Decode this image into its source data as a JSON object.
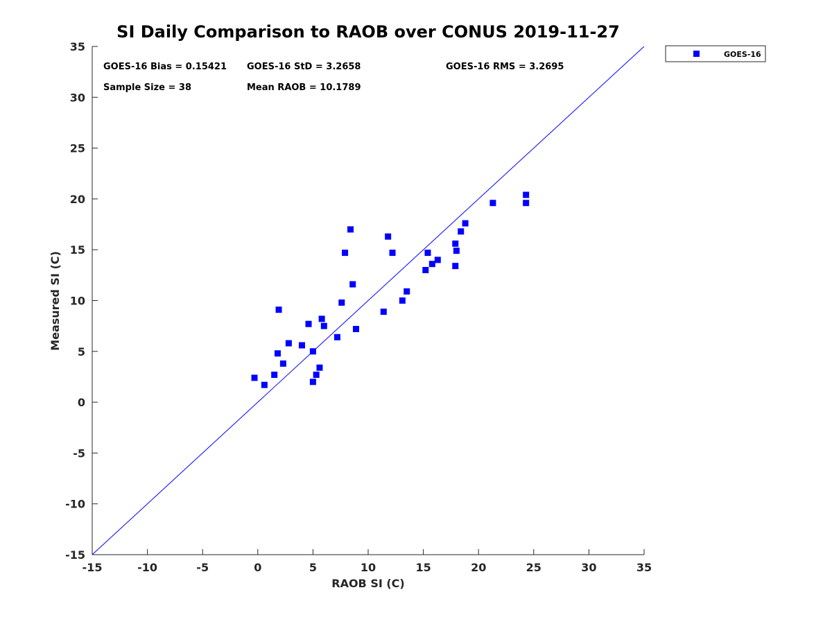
{
  "chart_data": {
    "type": "scatter",
    "title": "SI Daily Comparison to RAOB over CONUS 2019-11-27",
    "xlabel": "RAOB SI (C)",
    "ylabel": "Measured SI (C)",
    "xlim": [
      -15,
      35
    ],
    "ylim": [
      -15,
      35
    ],
    "xticks": [
      -15,
      -10,
      -5,
      0,
      5,
      10,
      15,
      20,
      25,
      30,
      35
    ],
    "yticks": [
      -15,
      -10,
      -5,
      0,
      5,
      10,
      15,
      20,
      25,
      30,
      35
    ],
    "grid": false,
    "legend_position": "outside top-right",
    "stats": [
      "GOES-16 Bias = 0.15421",
      "GOES-16 StD = 3.2658",
      "GOES-16 RMS = 3.2695",
      "Sample Size = 38",
      "Mean RAOB = 10.1789"
    ],
    "reference_line": {
      "name": "1:1 line",
      "color": "#0000ff",
      "from": [
        -15,
        -15
      ],
      "to": [
        35,
        35
      ]
    },
    "series": [
      {
        "name": "GOES-16",
        "color": "#0000ff",
        "marker": "square",
        "points": [
          [
            -0.3,
            2.4
          ],
          [
            0.6,
            1.7
          ],
          [
            1.5,
            2.7
          ],
          [
            1.8,
            4.8
          ],
          [
            1.9,
            9.1
          ],
          [
            2.3,
            3.8
          ],
          [
            2.8,
            5.8
          ],
          [
            4.0,
            5.6
          ],
          [
            4.6,
            7.7
          ],
          [
            5.0,
            5.0
          ],
          [
            5.0,
            2.0
          ],
          [
            5.3,
            2.7
          ],
          [
            5.6,
            3.4
          ],
          [
            5.8,
            8.2
          ],
          [
            6.0,
            7.5
          ],
          [
            7.2,
            6.4
          ],
          [
            7.6,
            9.8
          ],
          [
            7.9,
            14.7
          ],
          [
            8.4,
            17.0
          ],
          [
            8.6,
            11.6
          ],
          [
            8.9,
            7.2
          ],
          [
            11.4,
            8.9
          ],
          [
            11.8,
            16.3
          ],
          [
            12.2,
            14.7
          ],
          [
            13.1,
            10.0
          ],
          [
            13.5,
            10.9
          ],
          [
            15.2,
            13.0
          ],
          [
            15.4,
            14.7
          ],
          [
            15.8,
            13.6
          ],
          [
            16.3,
            14.0
          ],
          [
            17.9,
            15.6
          ],
          [
            18.0,
            14.9
          ],
          [
            17.9,
            13.4
          ],
          [
            18.4,
            16.8
          ],
          [
            18.8,
            17.6
          ],
          [
            21.3,
            19.6
          ],
          [
            24.3,
            20.4
          ],
          [
            24.3,
            19.6
          ]
        ]
      }
    ]
  }
}
